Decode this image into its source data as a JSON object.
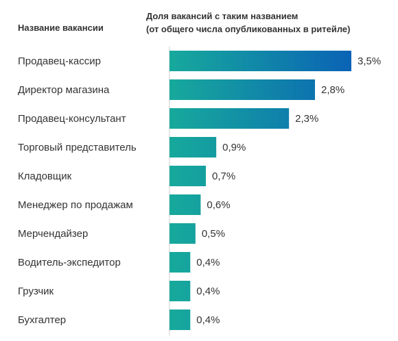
{
  "header": {
    "category_label": "Название вакансии",
    "value_label_line1": "Доля вакансий с таким названием",
    "value_label_line2": "(от общего числа опубликованных в ритейле)"
  },
  "colors": {
    "teal": "#17A99C",
    "blue": "#0A63B5",
    "text": "#333333",
    "axis": "#cccccc"
  },
  "chart_data": {
    "type": "bar",
    "orientation": "horizontal",
    "title": "",
    "xlabel": "Доля вакансий с таким названием (от общего числа опубликованных в ритейле)",
    "ylabel": "Название вакансии",
    "categories": [
      "Продавец-кассир",
      "Директор магазина",
      "Продавец-консультант",
      "Торговый представитель",
      "Кладовщик",
      "Менеджер по продажам",
      "Мерчендайзер",
      "Водитель-экспедитор",
      "Грузчик",
      "Бухгалтер"
    ],
    "values": [
      3.5,
      2.8,
      2.3,
      0.9,
      0.7,
      0.6,
      0.5,
      0.4,
      0.4,
      0.4
    ],
    "value_labels": [
      "3,5%",
      "2,8%",
      "2,3%",
      "0,9%",
      "0,7%",
      "0,6%",
      "0,5%",
      "0,4%",
      "0,4%",
      "0,4%"
    ],
    "xlim": [
      0,
      3.5
    ],
    "grid": false,
    "legend": "none"
  }
}
